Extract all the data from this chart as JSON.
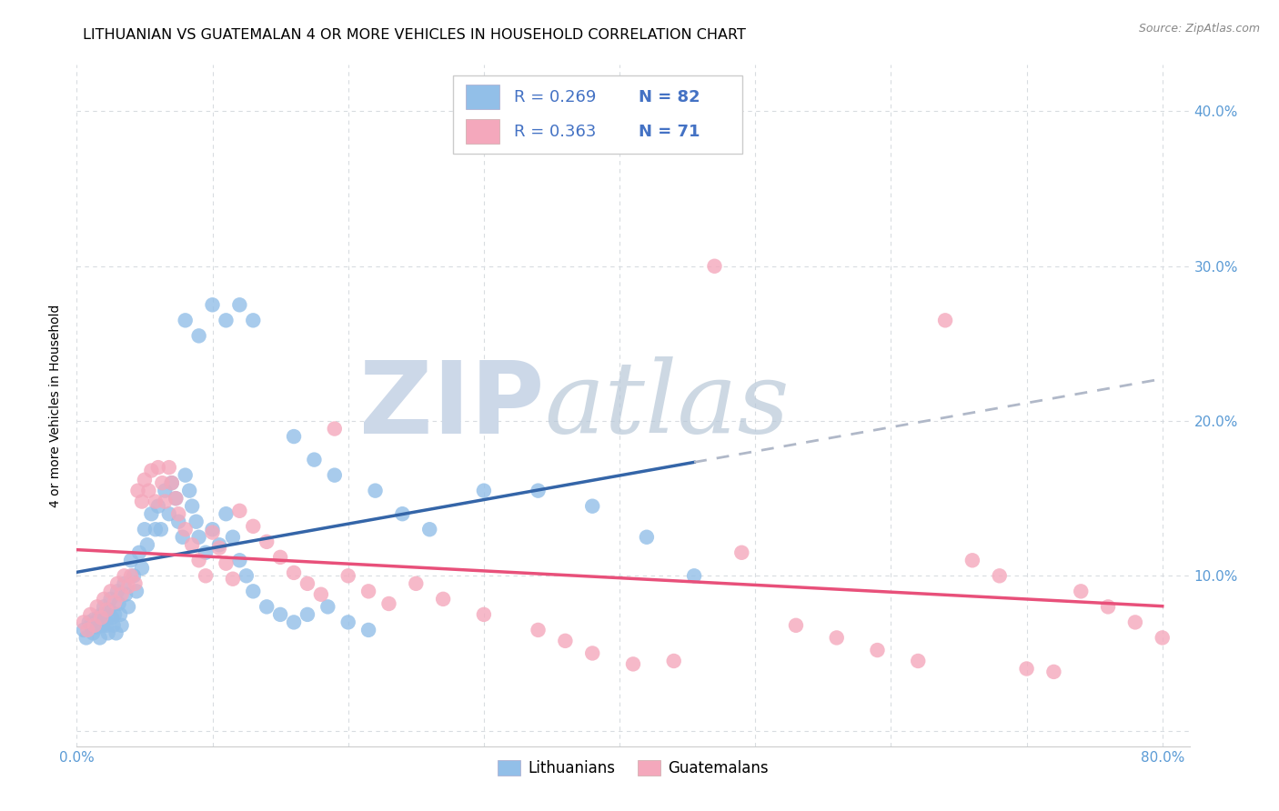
{
  "title": "LITHUANIAN VS GUATEMALAN 4 OR MORE VEHICLES IN HOUSEHOLD CORRELATION CHART",
  "source": "Source: ZipAtlas.com",
  "ylabel": "4 or more Vehicles in Household",
  "xlim": [
    0.0,
    0.82
  ],
  "ylim": [
    -0.01,
    0.43
  ],
  "xtick_positions": [
    0.0,
    0.1,
    0.2,
    0.3,
    0.4,
    0.5,
    0.6,
    0.7,
    0.8
  ],
  "xticklabels_show": [
    "0.0%",
    "80.0%"
  ],
  "ytick_positions": [
    0.0,
    0.1,
    0.2,
    0.3,
    0.4
  ],
  "yticklabels_right": [
    "",
    "10.0%",
    "20.0%",
    "30.0%",
    "40.0%"
  ],
  "watermark": "ZIPatlas",
  "watermark_color": "#ccd8e8",
  "blue_scatter_color": "#92bfe8",
  "pink_scatter_color": "#f4a8bc",
  "blue_line_color": "#3465a8",
  "pink_line_color": "#e8507a",
  "dashed_line_color": "#b0b8c8",
  "grid_color": "#d8dce0",
  "background_color": "#ffffff",
  "tick_color": "#5b9bd5",
  "title_fontsize": 11.5,
  "axis_label_fontsize": 10,
  "tick_fontsize": 11,
  "legend_text_color": "#4472c4",
  "legend_N_color": "#e85b8a",
  "blue_line_x_end": 0.455,
  "blue_points_x": [
    0.005,
    0.007,
    0.009,
    0.01,
    0.012,
    0.013,
    0.015,
    0.016,
    0.017,
    0.018,
    0.019,
    0.02,
    0.021,
    0.022,
    0.023,
    0.024,
    0.025,
    0.026,
    0.027,
    0.028,
    0.029,
    0.03,
    0.031,
    0.032,
    0.033,
    0.035,
    0.036,
    0.038,
    0.04,
    0.042,
    0.044,
    0.046,
    0.048,
    0.05,
    0.052,
    0.055,
    0.058,
    0.06,
    0.062,
    0.065,
    0.068,
    0.07,
    0.073,
    0.075,
    0.078,
    0.08,
    0.083,
    0.085,
    0.088,
    0.09,
    0.095,
    0.1,
    0.105,
    0.11,
    0.115,
    0.12,
    0.125,
    0.13,
    0.14,
    0.15,
    0.16,
    0.17,
    0.185,
    0.2,
    0.215,
    0.08,
    0.09,
    0.1,
    0.11,
    0.12,
    0.13,
    0.16,
    0.175,
    0.19,
    0.22,
    0.24,
    0.26,
    0.3,
    0.34,
    0.38,
    0.42,
    0.455
  ],
  "blue_points_y": [
    0.065,
    0.06,
    0.07,
    0.068,
    0.063,
    0.072,
    0.067,
    0.073,
    0.06,
    0.075,
    0.068,
    0.08,
    0.072,
    0.068,
    0.063,
    0.078,
    0.085,
    0.073,
    0.068,
    0.075,
    0.063,
    0.09,
    0.082,
    0.075,
    0.068,
    0.095,
    0.088,
    0.08,
    0.11,
    0.1,
    0.09,
    0.115,
    0.105,
    0.13,
    0.12,
    0.14,
    0.13,
    0.145,
    0.13,
    0.155,
    0.14,
    0.16,
    0.15,
    0.135,
    0.125,
    0.165,
    0.155,
    0.145,
    0.135,
    0.125,
    0.115,
    0.13,
    0.12,
    0.14,
    0.125,
    0.11,
    0.1,
    0.09,
    0.08,
    0.075,
    0.07,
    0.075,
    0.08,
    0.07,
    0.065,
    0.265,
    0.255,
    0.275,
    0.265,
    0.275,
    0.265,
    0.19,
    0.175,
    0.165,
    0.155,
    0.14,
    0.13,
    0.155,
    0.155,
    0.145,
    0.125,
    0.1
  ],
  "pink_points_x": [
    0.005,
    0.008,
    0.01,
    0.013,
    0.015,
    0.018,
    0.02,
    0.022,
    0.025,
    0.028,
    0.03,
    0.033,
    0.035,
    0.038,
    0.04,
    0.043,
    0.045,
    0.048,
    0.05,
    0.053,
    0.055,
    0.058,
    0.06,
    0.063,
    0.065,
    0.068,
    0.07,
    0.073,
    0.075,
    0.08,
    0.085,
    0.09,
    0.095,
    0.1,
    0.105,
    0.11,
    0.115,
    0.12,
    0.13,
    0.14,
    0.15,
    0.16,
    0.17,
    0.18,
    0.19,
    0.2,
    0.215,
    0.23,
    0.25,
    0.27,
    0.3,
    0.34,
    0.36,
    0.38,
    0.41,
    0.44,
    0.47,
    0.49,
    0.53,
    0.56,
    0.59,
    0.62,
    0.64,
    0.66,
    0.68,
    0.7,
    0.72,
    0.74,
    0.76,
    0.78,
    0.8
  ],
  "pink_points_y": [
    0.07,
    0.065,
    0.075,
    0.068,
    0.08,
    0.073,
    0.085,
    0.078,
    0.09,
    0.083,
    0.095,
    0.088,
    0.1,
    0.093,
    0.1,
    0.095,
    0.155,
    0.148,
    0.162,
    0.155,
    0.168,
    0.148,
    0.17,
    0.16,
    0.148,
    0.17,
    0.16,
    0.15,
    0.14,
    0.13,
    0.12,
    0.11,
    0.1,
    0.128,
    0.118,
    0.108,
    0.098,
    0.142,
    0.132,
    0.122,
    0.112,
    0.102,
    0.095,
    0.088,
    0.195,
    0.1,
    0.09,
    0.082,
    0.095,
    0.085,
    0.075,
    0.065,
    0.058,
    0.05,
    0.043,
    0.045,
    0.3,
    0.115,
    0.068,
    0.06,
    0.052,
    0.045,
    0.265,
    0.11,
    0.1,
    0.04,
    0.038,
    0.09,
    0.08,
    0.07,
    0.06
  ]
}
